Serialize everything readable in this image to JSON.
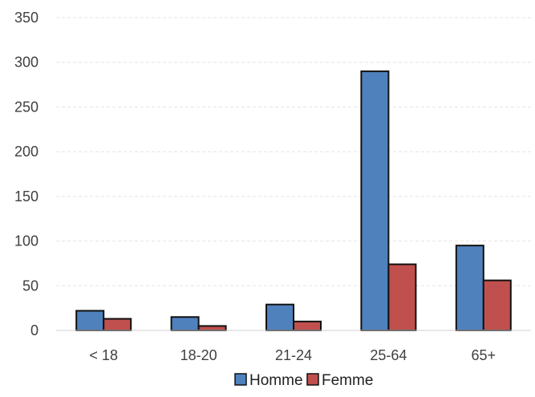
{
  "chart_data": {
    "type": "bar",
    "title": "",
    "xlabel": "",
    "ylabel": "",
    "categories": [
      "< 18",
      "18-20",
      "21-24",
      "25-64",
      "65+"
    ],
    "series": [
      {
        "name": "Homme",
        "color": "#4f81bd",
        "values": [
          22,
          15,
          29,
          290,
          95
        ]
      },
      {
        "name": "Femme",
        "color": "#c0504d",
        "values": [
          13,
          5,
          10,
          74,
          56
        ]
      }
    ],
    "ylim": [
      0,
      350
    ],
    "yticks": [
      0,
      50,
      100,
      150,
      200,
      250,
      300,
      350
    ],
    "grid": true,
    "legend_position": "bottom-center"
  }
}
